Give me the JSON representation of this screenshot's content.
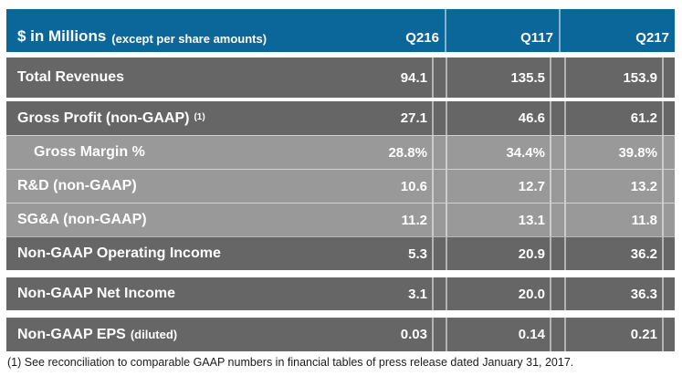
{
  "table": {
    "header": {
      "title": "$ in Millions",
      "title_note": "(except per share amounts)",
      "columns": [
        "Q216",
        "Q117",
        "Q217"
      ]
    },
    "rows": [
      {
        "label": "Total Revenues",
        "note": "",
        "note_style": "",
        "values": [
          "94.1",
          "135.5",
          "153.9"
        ],
        "tone": "dark",
        "variant": "total",
        "indent": false
      },
      {
        "label": "Gross Profit (non-GAAP)",
        "note": "(1)",
        "note_style": "sup",
        "values": [
          "27.1",
          "46.6",
          "61.2"
        ],
        "tone": "dark",
        "variant": "group-first",
        "indent": false
      },
      {
        "label": "Gross Margin %",
        "note": "",
        "note_style": "",
        "values": [
          "28.8%",
          "34.4%",
          "39.8%"
        ],
        "tone": "light",
        "variant": "group",
        "indent": true
      },
      {
        "label": "R&D (non-GAAP)",
        "note": "",
        "note_style": "",
        "values": [
          "10.6",
          "12.7",
          "13.2"
        ],
        "tone": "light",
        "variant": "group",
        "indent": false
      },
      {
        "label": "SG&A (non-GAAP)",
        "note": "",
        "note_style": "",
        "values": [
          "11.2",
          "13.1",
          "11.8"
        ],
        "tone": "light",
        "variant": "group",
        "indent": false
      },
      {
        "label": "Non-GAAP Operating Income",
        "note": "",
        "note_style": "",
        "values": [
          "5.3",
          "20.9",
          "36.2"
        ],
        "tone": "dark",
        "variant": "group",
        "indent": false
      },
      {
        "label": "Non-GAAP Net Income",
        "note": "",
        "note_style": "",
        "values": [
          "3.1",
          "20.0",
          "36.3"
        ],
        "tone": "dark",
        "variant": "net",
        "indent": false
      },
      {
        "label": "Non-GAAP EPS",
        "note": "(diluted)",
        "note_style": "inline",
        "values": [
          "0.03",
          "0.14",
          "0.21"
        ],
        "tone": "dark",
        "variant": "eps",
        "indent": false
      }
    ],
    "footnote": "(1) See reconciliation to comparable GAAP numbers in financial tables of press release dated January 31, 2017."
  },
  "chart_data": {
    "type": "table",
    "title": "$ in Millions (except per share amounts)",
    "columns": [
      "Q216",
      "Q117",
      "Q217"
    ],
    "rows": [
      {
        "label": "Total Revenues",
        "values": [
          94.1,
          135.5,
          153.9
        ]
      },
      {
        "label": "Gross Profit (non-GAAP) (1)",
        "values": [
          27.1,
          46.6,
          61.2
        ]
      },
      {
        "label": "Gross Margin %",
        "values": [
          "28.8%",
          "34.4%",
          "39.8%"
        ]
      },
      {
        "label": "R&D (non-GAAP)",
        "values": [
          10.6,
          12.7,
          13.2
        ]
      },
      {
        "label": "SG&A (non-GAAP)",
        "values": [
          11.2,
          13.1,
          11.8
        ]
      },
      {
        "label": "Non-GAAP Operating Income",
        "values": [
          5.3,
          20.9,
          36.2
        ]
      },
      {
        "label": "Non-GAAP Net Income",
        "values": [
          3.1,
          20.0,
          36.3
        ]
      },
      {
        "label": "Non-GAAP EPS (diluted)",
        "values": [
          0.03,
          0.14,
          0.21
        ]
      }
    ],
    "footnote": "(1) See reconciliation to comparable GAAP numbers in financial tables of press release dated January 31, 2017."
  },
  "colors": {
    "header_blue": "#0b669a",
    "row_dark": "#666666",
    "row_light": "#999999",
    "table_text": "#ffffff"
  }
}
